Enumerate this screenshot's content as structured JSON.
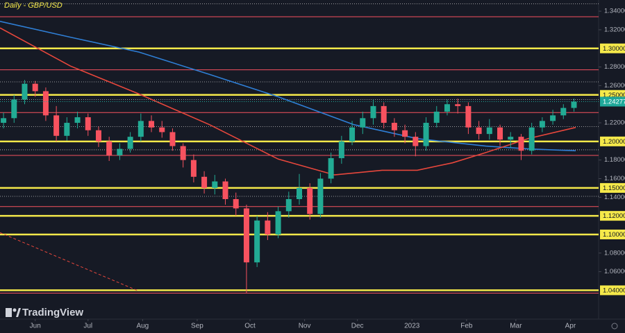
{
  "chart_data": {
    "type": "candlestick",
    "title": "Daily - GBP/USD",
    "watermark": "TradingView",
    "background": "#161a25",
    "up_color": "#22ab94",
    "down_color": "#f7525f",
    "xlim": [
      -20,
      320
    ],
    "xticks": [
      {
        "value": 0,
        "label": "Jun"
      },
      {
        "value": 30,
        "label": "Jul"
      },
      {
        "value": 61,
        "label": "Aug"
      },
      {
        "value": 92,
        "label": "Sep"
      },
      {
        "value": 122,
        "label": "Oct"
      },
      {
        "value": 153,
        "label": "Nov"
      },
      {
        "value": 183,
        "label": "Dec"
      },
      {
        "value": 214,
        "label": "2023"
      },
      {
        "value": 245,
        "label": "Feb"
      },
      {
        "value": 273,
        "label": "Mar"
      },
      {
        "value": 304,
        "label": "Apr"
      }
    ],
    "ylim": [
      1.009,
      1.352
    ],
    "yticks": [
      {
        "value": 1.34,
        "label": "1.34000"
      },
      {
        "value": 1.32,
        "label": "1.32000"
      },
      {
        "value": 1.28,
        "label": "1.28000"
      },
      {
        "value": 1.26,
        "label": "1.26000"
      },
      {
        "value": 1.22,
        "label": "1.22000"
      },
      {
        "value": 1.18,
        "label": "1.18000"
      },
      {
        "value": 1.16,
        "label": "1.16000"
      },
      {
        "value": 1.14,
        "label": "1.14000"
      },
      {
        "value": 1.08,
        "label": "1.08000"
      },
      {
        "value": 1.06,
        "label": "1.06000"
      }
    ],
    "candles": {
      "x": [
        -18,
        -12,
        -6,
        0,
        6,
        12,
        18,
        24,
        30,
        36,
        42,
        48,
        54,
        60,
        66,
        72,
        78,
        84,
        90,
        96,
        102,
        108,
        114,
        120,
        126,
        132,
        138,
        144,
        150,
        156,
        162,
        168,
        174,
        180,
        186,
        192,
        198,
        204,
        210,
        216,
        222,
        228,
        234,
        240,
        246,
        252,
        258,
        264,
        270,
        276,
        282,
        288,
        294,
        300,
        306
      ],
      "open": [
        1.22,
        1.225,
        1.245,
        1.262,
        1.254,
        1.228,
        1.206,
        1.22,
        1.226,
        1.212,
        1.2,
        1.185,
        1.192,
        1.205,
        1.222,
        1.215,
        1.21,
        1.195,
        1.18,
        1.162,
        1.15,
        1.157,
        1.138,
        1.128,
        1.07,
        1.115,
        1.1,
        1.125,
        1.138,
        1.15,
        1.122,
        1.16,
        1.182,
        1.2,
        1.215,
        1.225,
        1.238,
        1.22,
        1.212,
        1.205,
        1.195,
        1.22,
        1.232,
        1.24,
        1.238,
        1.215,
        1.208,
        1.215,
        1.202,
        1.205,
        1.19,
        1.215,
        1.222,
        1.228,
        1.236
      ],
      "high": [
        1.231,
        1.25,
        1.266,
        1.265,
        1.258,
        1.238,
        1.226,
        1.232,
        1.23,
        1.216,
        1.205,
        1.198,
        1.21,
        1.23,
        1.228,
        1.222,
        1.214,
        1.198,
        1.186,
        1.168,
        1.164,
        1.16,
        1.145,
        1.132,
        1.12,
        1.124,
        1.13,
        1.146,
        1.165,
        1.155,
        1.166,
        1.188,
        1.206,
        1.222,
        1.232,
        1.245,
        1.242,
        1.225,
        1.218,
        1.21,
        1.226,
        1.238,
        1.245,
        1.246,
        1.242,
        1.222,
        1.224,
        1.218,
        1.21,
        1.208,
        1.22,
        1.226,
        1.234,
        1.24,
        1.246
      ],
      "low": [
        1.214,
        1.22,
        1.24,
        1.248,
        1.222,
        1.2,
        1.201,
        1.214,
        1.206,
        1.194,
        1.179,
        1.18,
        1.188,
        1.2,
        1.21,
        1.204,
        1.19,
        1.172,
        1.156,
        1.144,
        1.143,
        1.132,
        1.12,
        1.037,
        1.065,
        1.094,
        1.096,
        1.118,
        1.132,
        1.116,
        1.118,
        1.155,
        1.176,
        1.196,
        1.208,
        1.218,
        1.214,
        1.205,
        1.198,
        1.184,
        1.19,
        1.215,
        1.228,
        1.23,
        1.208,
        1.202,
        1.202,
        1.195,
        1.193,
        1.18,
        1.186,
        1.21,
        1.218,
        1.224,
        1.232
      ],
      "close": [
        1.225,
        1.245,
        1.262,
        1.254,
        1.228,
        1.206,
        1.22,
        1.226,
        1.212,
        1.2,
        1.185,
        1.192,
        1.205,
        1.222,
        1.215,
        1.21,
        1.195,
        1.18,
        1.162,
        1.15,
        1.157,
        1.138,
        1.128,
        1.07,
        1.115,
        1.1,
        1.125,
        1.138,
        1.15,
        1.122,
        1.16,
        1.182,
        1.2,
        1.215,
        1.225,
        1.238,
        1.22,
        1.212,
        1.205,
        1.195,
        1.22,
        1.232,
        1.24,
        1.238,
        1.215,
        1.208,
        1.215,
        1.202,
        1.205,
        1.19,
        1.215,
        1.222,
        1.228,
        1.236,
        1.24277
      ]
    },
    "series": [
      {
        "color": "#2f7fd6",
        "x": [
          -20,
          20,
          59,
          99,
          138,
          181,
          217,
          256,
          280,
          307
        ],
        "values": [
          1.329,
          1.312,
          1.296,
          1.272,
          1.248,
          1.218,
          1.203,
          1.195,
          1.192,
          1.19
        ]
      },
      {
        "color": "#e8473c",
        "x": [
          -20,
          20,
          59,
          99,
          138,
          170,
          197,
          217,
          237,
          256,
          280,
          307
        ],
        "values": [
          1.322,
          1.281,
          1.251,
          1.218,
          1.181,
          1.164,
          1.169,
          1.169,
          1.177,
          1.188,
          1.203,
          1.215
        ]
      }
    ],
    "trendline": {
      "color": "#e8473c",
      "x": [
        -20,
        59
      ],
      "values": [
        1.102,
        1.039
      ]
    },
    "yellow_levels": [
      {
        "value": 1.3,
        "label": "1.30000"
      },
      {
        "value": 1.25,
        "label": "1.25000"
      },
      {
        "value": 1.2,
        "label": "1.20000"
      },
      {
        "value": 1.15,
        "label": "1.15000"
      },
      {
        "value": 1.12,
        "label": "1.12000"
      },
      {
        "value": 1.1,
        "label": "1.10000"
      },
      {
        "value": 1.04,
        "label": "1.04000"
      }
    ],
    "yellow_color": "#f5e94a",
    "red_levels": [
      1.334,
      1.277,
      1.231,
      1.185,
      1.13,
      1.037
    ],
    "dotted_levels": [
      1.348,
      1.264,
      1.245,
      1.216,
      1.191,
      1.141
    ],
    "last_price": {
      "value": 1.24277,
      "label": "1.24277"
    },
    "last_price_color": "#1fa89a"
  }
}
